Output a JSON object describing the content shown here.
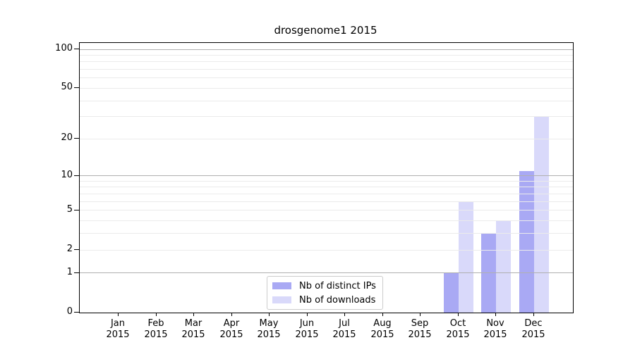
{
  "chart_data": {
    "type": "bar",
    "title": "drosgenome1 2015",
    "year_label": "2015",
    "months": [
      "Jan",
      "Feb",
      "Mar",
      "Apr",
      "May",
      "Jun",
      "Jul",
      "Aug",
      "Sep",
      "Oct",
      "Nov",
      "Dec"
    ],
    "series": [
      {
        "name": "Nb of distinct IPs",
        "color": "#a9a9f4",
        "values": [
          0,
          0,
          0,
          0,
          0,
          0,
          0,
          0,
          0,
          1,
          3,
          11
        ]
      },
      {
        "name": "Nb of downloads",
        "color": "#d9d9fa",
        "values": [
          0,
          0,
          0,
          0,
          0,
          0,
          0,
          0,
          0,
          6,
          4,
          30
        ]
      }
    ],
    "y_ticks": [
      0,
      1,
      2,
      5,
      10,
      20,
      50,
      100
    ],
    "y_scale": "log1p",
    "y_minor_gridlines": [
      2,
      3,
      4,
      5,
      6,
      7,
      8,
      9,
      20,
      30,
      40,
      50,
      60,
      70,
      80,
      90
    ],
    "y_major_gridlines": [
      1,
      10,
      100
    ],
    "grid": "horizontal",
    "legend_position": "bottom-center",
    "colors": {
      "minor_gridline": "#ebebeb",
      "major_gridline": "#b0b0b0",
      "axis": "#000000",
      "text": "#000000"
    }
  }
}
